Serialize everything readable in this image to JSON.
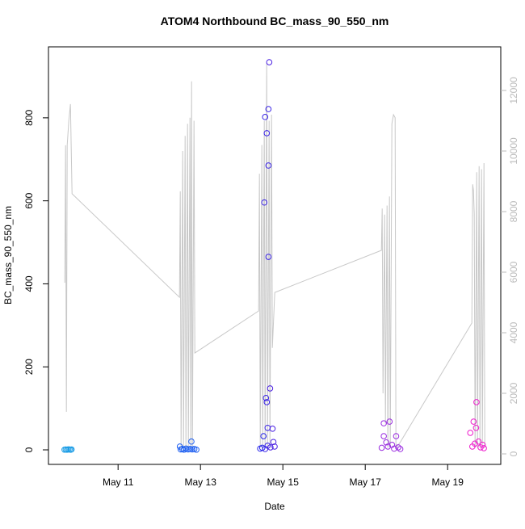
{
  "chart_data": {
    "type": "scatter",
    "title": "ATOM4 Northbound BC_mass_90_550_nm",
    "xlabel": "Date",
    "ylabel": "BC_mass_90_550_nm",
    "x": [
      9.7,
      9.73,
      9.76,
      9.79,
      9.82,
      9.85,
      9.87,
      12.5,
      12.52,
      12.56,
      12.6,
      12.65,
      12.7,
      12.75,
      12.78,
      12.8,
      12.85,
      12.9,
      14.45,
      14.5,
      14.53,
      14.55,
      14.57,
      14.57,
      14.59,
      14.61,
      14.61,
      14.63,
      14.63,
      14.65,
      14.65,
      14.65,
      14.67,
      14.69,
      14.7,
      14.75,
      14.77,
      14.8,
      17.4,
      17.45,
      17.45,
      17.51,
      17.55,
      17.59,
      17.65,
      17.7,
      17.75,
      17.8,
      17.85,
      19.55,
      19.6,
      19.63,
      19.66,
      19.69,
      19.7,
      19.75,
      19.8,
      19.85,
      19.88
    ],
    "values": [
      0.5,
      1,
      0.3,
      1.2,
      0.8,
      0.4,
      1,
      8,
      1,
      2,
      0.5,
      3,
      1,
      2,
      20,
      1,
      2,
      0.5,
      3,
      5,
      33,
      596,
      802,
      2,
      125,
      763,
      115,
      53,
      10,
      821,
      685,
      465,
      934,
      148,
      6,
      51,
      19,
      8,
      5,
      64,
      33,
      18,
      8,
      68,
      12,
      3,
      33,
      6,
      2,
      41,
      8,
      68,
      15,
      53,
      115,
      20,
      6,
      12,
      4
    ],
    "colors": [
      "#1e9ee6",
      "#1e9ee6",
      "#1e9ee6",
      "#1e9ee6",
      "#1e9ee6",
      "#1e9ee6",
      "#1e9ee6",
      "#1a5cf0",
      "#1a5cf0",
      "#1a5cf0",
      "#1a5cf0",
      "#1a5cf0",
      "#1a5cf0",
      "#1a5cf0",
      "#1a5cf0",
      "#1a5cf0",
      "#1a5cf0",
      "#1a5cf0",
      "#2a28ea",
      "#2a28ea",
      "#2a28ea",
      "#3a24e6",
      "#3a24e6",
      "#3a24e6",
      "#3a24e6",
      "#3a24e6",
      "#3a24e6",
      "#3a24e6",
      "#3a24e6",
      "#3a24e6",
      "#3a24e6",
      "#3a24e6",
      "#4a20e2",
      "#4a20e2",
      "#4a20e2",
      "#4a20e2",
      "#4a20e2",
      "#4a20e2",
      "#9b2ee0",
      "#9b2ee0",
      "#9b2ee0",
      "#9b2ee0",
      "#9b2ee0",
      "#9b2ee0",
      "#9b2ee0",
      "#9b2ee0",
      "#9b2ee0",
      "#9b2ee0",
      "#9b2ee0",
      "#ee1ccc",
      "#ee1ccc",
      "#ee1ccc",
      "#ee1ccc",
      "#ee1ccc",
      "#ee1ccc",
      "#ee1ccc",
      "#ee1ccc",
      "#ee1ccc",
      "#ee1ccc"
    ],
    "xlim": [
      9.31,
      20.29
    ],
    "xticks": [
      {
        "value": 11,
        "label": "May 11"
      },
      {
        "value": 13,
        "label": "May 13"
      },
      {
        "value": 15,
        "label": "May 15"
      },
      {
        "value": 17,
        "label": "May 17"
      },
      {
        "value": 19,
        "label": "May 19"
      }
    ],
    "ylim": [
      -35,
      971
    ],
    "yticks": [
      0,
      200,
      400,
      600,
      800
    ],
    "y2lim": [
      -347,
      13440
    ],
    "y2ticks": [
      0,
      2000,
      4000,
      6000,
      8000,
      10000,
      12000
    ],
    "overlay": {
      "type": "line",
      "axis": "y2",
      "color": "#c8c8c8",
      "x": [
        9.706,
        9.725,
        9.745,
        9.765,
        9.804,
        9.843,
        9.882,
        12.49,
        12.51,
        12.529,
        12.569,
        12.588,
        12.627,
        12.647,
        12.686,
        12.706,
        12.745,
        12.765,
        12.784,
        12.804,
        12.843,
        12.863,
        14.412,
        14.431,
        14.451,
        14.49,
        14.51,
        14.549,
        14.569,
        14.608,
        14.627,
        14.667,
        14.686,
        14.725,
        14.745,
        14.804,
        17.392,
        17.412,
        17.431,
        17.471,
        17.49,
        17.529,
        17.549,
        17.588,
        17.608,
        17.647,
        17.686,
        17.725,
        17.745,
        17.843,
        19.588,
        19.608,
        19.627,
        19.647,
        19.667,
        19.706,
        19.725,
        19.765,
        19.784,
        19.824,
        19.843,
        19.882,
        19.902
      ],
      "values": [
        5650,
        10190,
        1390,
        10190,
        11000,
        11550,
        8590,
        5170,
        8670,
        200,
        10000,
        200,
        10500,
        200,
        10900,
        200,
        11100,
        200,
        12300,
        200,
        11000,
        3330,
        4720,
        9250,
        200,
        10200,
        200,
        11000,
        200,
        12900,
        200,
        11000,
        200,
        11200,
        3500,
        5330,
        6720,
        8100,
        2000,
        7900,
        1000,
        8200,
        200,
        8500,
        200,
        10900,
        11200,
        11100,
        200,
        370,
        4320,
        8900,
        8700,
        7900,
        200,
        9300,
        200,
        9500,
        200,
        9400,
        300,
        9600,
        200
      ]
    }
  }
}
